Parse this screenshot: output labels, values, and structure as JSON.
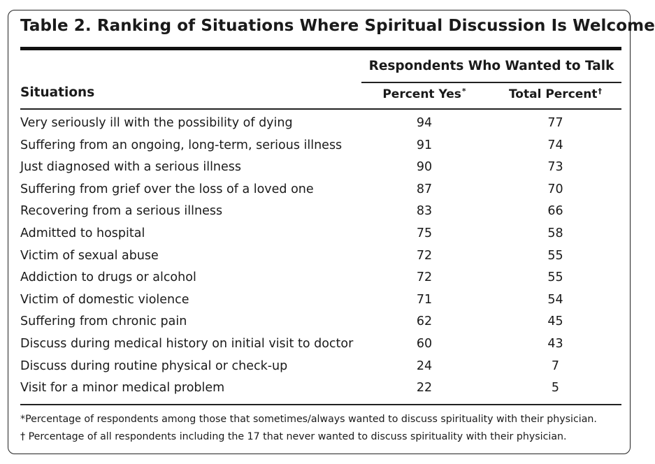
{
  "title": "Table 2. Ranking of Situations Where Spiritual Discussion Is Welcome",
  "group_header": "Respondents Who Wanted to Talk",
  "columns": {
    "situations": "Situations",
    "percent_yes": "Percent Yes",
    "percent_yes_mark": "*",
    "total_percent": "Total Percent",
    "total_percent_mark": "†"
  },
  "rows": [
    {
      "situation": "Very seriously ill with the possibility of dying",
      "percent_yes": "94",
      "total_percent": "77"
    },
    {
      "situation": "Suffering from an ongoing, long-term, serious illness",
      "percent_yes": "91",
      "total_percent": "74"
    },
    {
      "situation": "Just diagnosed with a serious illness",
      "percent_yes": "90",
      "total_percent": "73"
    },
    {
      "situation": "Suffering from grief over the loss of a loved one",
      "percent_yes": "87",
      "total_percent": "70"
    },
    {
      "situation": "Recovering from a serious illness",
      "percent_yes": "83",
      "total_percent": "66"
    },
    {
      "situation": "Admitted to hospital",
      "percent_yes": "75",
      "total_percent": "58"
    },
    {
      "situation": "Victim of sexual abuse",
      "percent_yes": "72",
      "total_percent": "55"
    },
    {
      "situation": "Addiction to drugs or alcohol",
      "percent_yes": "72",
      "total_percent": "55"
    },
    {
      "situation": "Victim of domestic violence",
      "percent_yes": "71",
      "total_percent": "54"
    },
    {
      "situation": "Suffering from chronic pain",
      "percent_yes": "62",
      "total_percent": "45"
    },
    {
      "situation": "Discuss during medical history on initial visit to doctor",
      "percent_yes": "60",
      "total_percent": "43"
    },
    {
      "situation": "Discuss during routine physical or check-up",
      "percent_yes": "24",
      "total_percent": "7"
    },
    {
      "situation": "Visit for a minor medical problem",
      "percent_yes": "22",
      "total_percent": "5"
    }
  ],
  "footnotes": [
    "*Percentage of respondents among those that sometimes/always wanted to discuss spirituality with their physician.",
    "† Percentage of all respondents including the 17 that never wanted to discuss spirituality with their physician."
  ]
}
